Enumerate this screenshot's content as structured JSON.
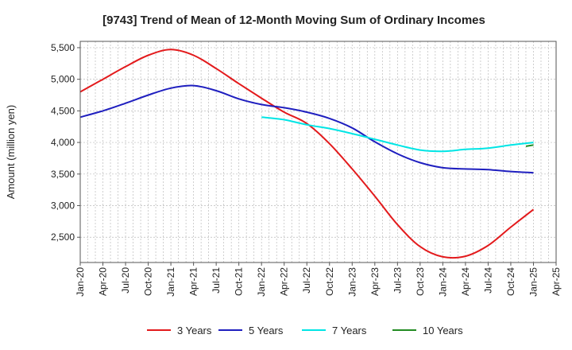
{
  "chart_data": {
    "type": "line",
    "title": "[9743]  Trend of Mean of 12-Month Moving Sum of Ordinary Incomes",
    "xlabel": "",
    "ylabel": "Amount (million yen)",
    "x_ticks": [
      "Jan-20",
      "Apr-20",
      "Jul-20",
      "Oct-20",
      "Jan-21",
      "Apr-21",
      "Jul-21",
      "Oct-21",
      "Jan-22",
      "Apr-22",
      "Jul-22",
      "Oct-22",
      "Jan-23",
      "Apr-23",
      "Jul-23",
      "Oct-23",
      "Jan-24",
      "Apr-24",
      "Jul-24",
      "Oct-24",
      "Jan-25",
      "Apr-25"
    ],
    "y_ticks": [
      2500,
      3000,
      3500,
      4000,
      4500,
      5000,
      5500
    ],
    "y_tick_labels": [
      "2,500",
      "3,000",
      "3,500",
      "4,000",
      "4,500",
      "5,000",
      "5,500"
    ],
    "ylim": [
      2100,
      5600
    ],
    "grid": true,
    "legend_position": "bottom",
    "series": [
      {
        "name": "3 Years",
        "color": "#e31a1c",
        "x": [
          "Jan-20",
          "Apr-20",
          "Jul-20",
          "Oct-20",
          "Jan-21",
          "Apr-21",
          "Jul-21",
          "Oct-21",
          "Jan-22",
          "Apr-22",
          "Jul-22",
          "Oct-22",
          "Jan-23",
          "Apr-23",
          "Jul-23",
          "Oct-23",
          "Jan-24",
          "Apr-24",
          "Jul-24",
          "Oct-24",
          "Jan-25"
        ],
        "values": [
          4800,
          5000,
          5200,
          5380,
          5470,
          5380,
          5170,
          4930,
          4700,
          4480,
          4300,
          3980,
          3580,
          3150,
          2700,
          2350,
          2190,
          2200,
          2370,
          2660,
          2940
        ]
      },
      {
        "name": "5 Years",
        "color": "#1f1fbf",
        "x": [
          "Jan-20",
          "Apr-20",
          "Jul-20",
          "Oct-20",
          "Jan-21",
          "Apr-21",
          "Jul-21",
          "Oct-21",
          "Jan-22",
          "Apr-22",
          "Jul-22",
          "Oct-22",
          "Jan-23",
          "Apr-23",
          "Jul-23",
          "Oct-23",
          "Jan-24",
          "Apr-24",
          "Jul-24",
          "Oct-24",
          "Jan-25"
        ],
        "values": [
          4400,
          4500,
          4620,
          4750,
          4860,
          4900,
          4820,
          4690,
          4600,
          4550,
          4480,
          4380,
          4230,
          4010,
          3820,
          3680,
          3600,
          3580,
          3570,
          3540,
          3520
        ]
      },
      {
        "name": "7 Years",
        "color": "#00e5e5",
        "x": [
          "Jan-22",
          "Apr-22",
          "Jul-22",
          "Oct-22",
          "Jan-23",
          "Apr-23",
          "Jul-23",
          "Oct-23",
          "Jan-24",
          "Apr-24",
          "Jul-24",
          "Oct-24",
          "Jan-25"
        ],
        "values": [
          4400,
          4360,
          4280,
          4220,
          4140,
          4050,
          3960,
          3880,
          3860,
          3890,
          3910,
          3960,
          4000
        ]
      },
      {
        "name": "10 Years",
        "color": "#228b22",
        "x": [
          "Dec-24",
          "Jan-25"
        ],
        "values": [
          3940,
          3960
        ]
      }
    ]
  }
}
